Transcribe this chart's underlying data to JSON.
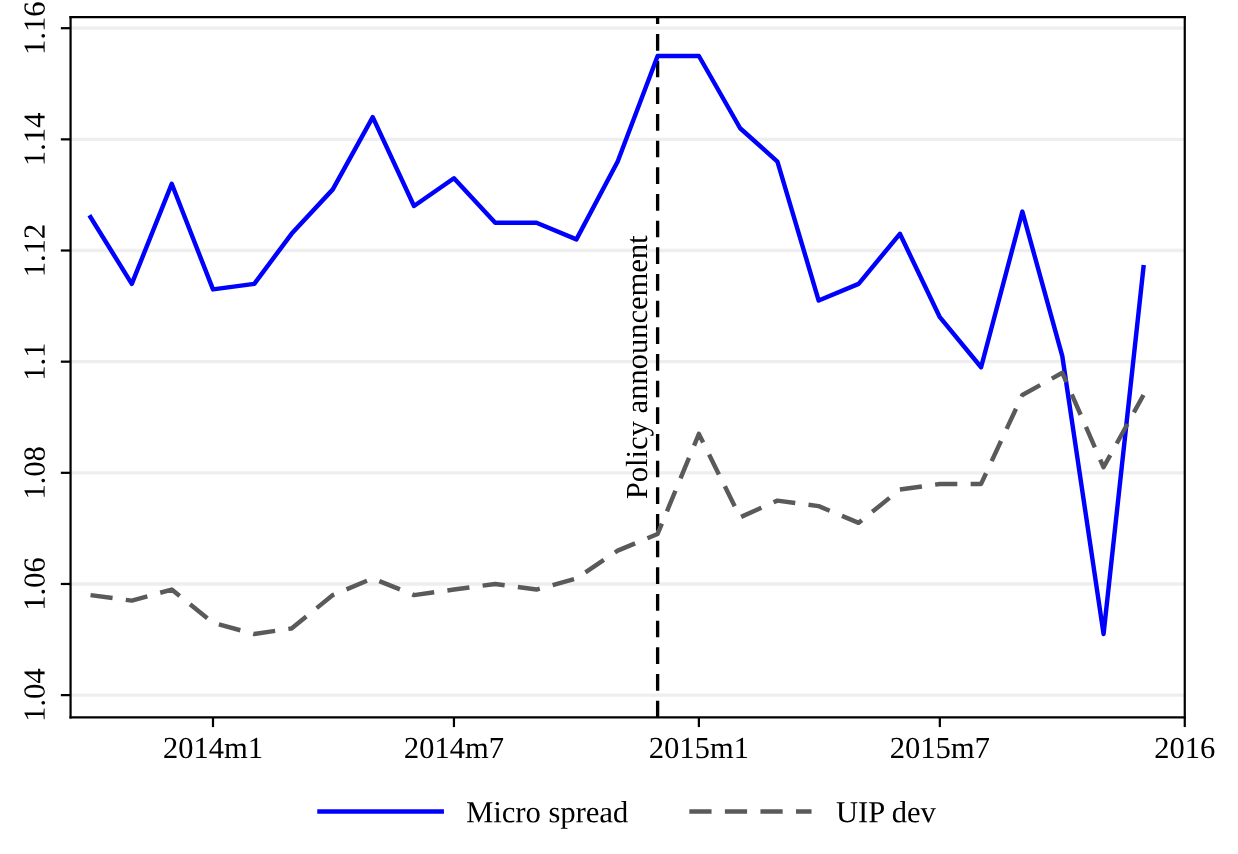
{
  "chart_data": {
    "type": "line",
    "x": [
      "2013-10",
      "2013-11",
      "2013-12",
      "2014-01",
      "2014-02",
      "2014-03",
      "2014-04",
      "2014-05",
      "2014-06",
      "2014-07",
      "2014-08",
      "2014-09",
      "2014-10",
      "2014-11",
      "2014-12",
      "2015-01",
      "2015-02",
      "2015-03",
      "2015-04",
      "2015-05",
      "2015-06",
      "2015-07",
      "2015-08",
      "2015-09",
      "2015-10",
      "2015-11",
      "2015-12"
    ],
    "series": [
      {
        "name": "Micro spread",
        "color": "#0000ff",
        "line_style": "solid",
        "values": [
          1.126,
          1.114,
          1.132,
          1.113,
          1.114,
          1.123,
          1.131,
          1.144,
          1.128,
          1.133,
          1.125,
          1.125,
          1.122,
          1.136,
          1.155,
          1.155,
          1.142,
          1.136,
          1.111,
          1.114,
          1.123,
          1.108,
          1.099,
          1.127,
          1.101,
          1.051,
          1.117
        ]
      },
      {
        "name": "UIP dev",
        "color": "#5a5a5a",
        "line_style": "dashed",
        "values": [
          1.058,
          1.057,
          1.059,
          1.053,
          1.051,
          1.052,
          1.058,
          1.061,
          1.058,
          1.059,
          1.06,
          1.059,
          1.061,
          1.066,
          1.069,
          1.087,
          1.072,
          1.075,
          1.074,
          1.071,
          1.077,
          1.078,
          1.078,
          1.094,
          1.098,
          1.081,
          1.094
        ]
      }
    ],
    "xlim": [
      "2013-09-16",
      "2016-01-01"
    ],
    "xticks": [
      {
        "value": "2014-01",
        "label": "2014m1"
      },
      {
        "value": "2014-07",
        "label": "2014m7"
      },
      {
        "value": "2015-01",
        "label": "2015m1"
      },
      {
        "value": "2015-07",
        "label": "2015m7"
      },
      {
        "value": "2016-01",
        "label": "2016"
      }
    ],
    "ylim": [
      1.036,
      1.162
    ],
    "yticks": [
      {
        "value": 1.04,
        "label": "1.04"
      },
      {
        "value": 1.06,
        "label": "1.06"
      },
      {
        "value": 1.08,
        "label": "1.08"
      },
      {
        "value": 1.1,
        "label": "1.1"
      },
      {
        "value": 1.12,
        "label": "1.12"
      },
      {
        "value": 1.14,
        "label": "1.14"
      },
      {
        "value": 1.16,
        "label": "1.16"
      }
    ],
    "ref_lines": [
      {
        "axis": "x",
        "value": "2014-12",
        "label": "Policy announcement",
        "color": "#000000",
        "line_style": "dashed"
      }
    ],
    "grid": "y",
    "legend": "bottom",
    "marker": "none"
  }
}
